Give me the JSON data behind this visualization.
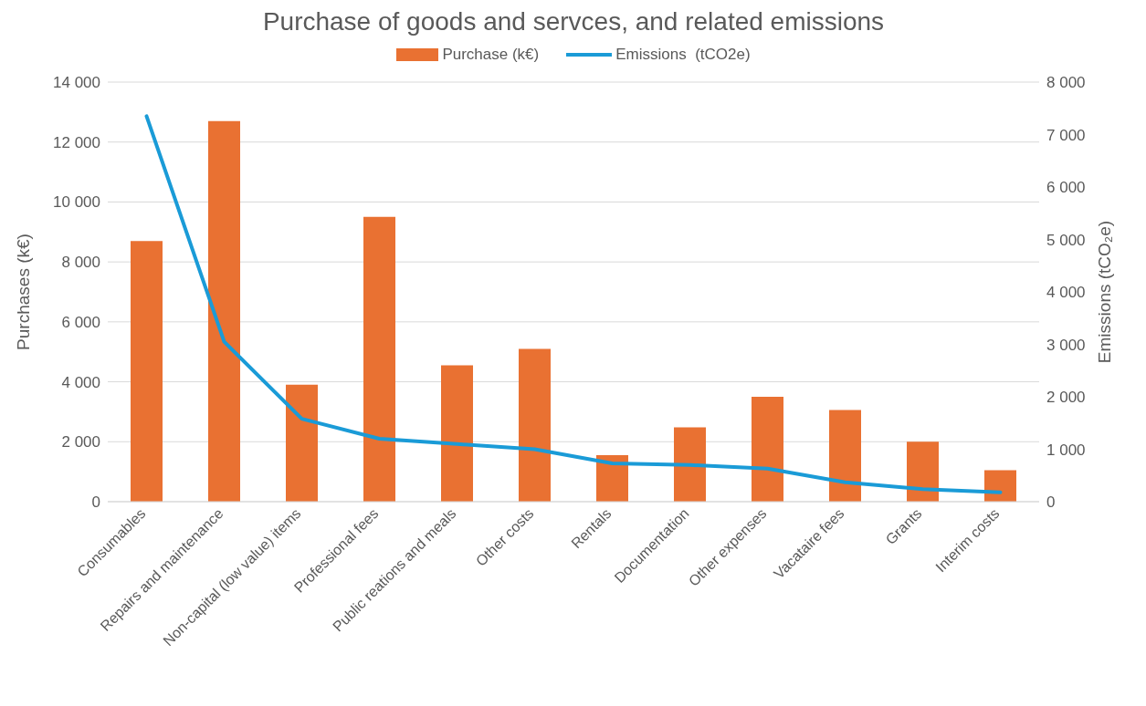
{
  "chart_data": {
    "type": "bar",
    "title": "Purchase of goods and servces, and related emissions",
    "ylabel": "Purchases (k€)",
    "y2label": "Emissions (tCO₂e)",
    "categories": [
      "Consumables",
      "Repairs and maintenance",
      "Non-capital (low value) items",
      "Professional fees",
      "Public reations and meals",
      "Other costs",
      "Rentals",
      "Documentation",
      "Other expenses",
      "Vacataire fees",
      "Grants",
      "Interim costs"
    ],
    "series": [
      {
        "name": "Purchase (k€)",
        "color": "#e97132",
        "values": [
          8700,
          12700,
          3900,
          9500,
          4550,
          5100,
          1550,
          2480,
          3500,
          3060,
          2000,
          1050
        ]
      },
      {
        "name": "Emissions  (tCO2e)",
        "type": "line",
        "axis": "y2",
        "color": "#1a9bd7",
        "values": [
          7350,
          3050,
          1580,
          1200,
          1100,
          1000,
          730,
          700,
          630,
          370,
          240,
          180
        ]
      }
    ],
    "ylim": [
      0,
      14000
    ],
    "yticks": [
      {
        "value": 0,
        "label": "0"
      },
      {
        "value": 2000,
        "label": "2 000"
      },
      {
        "value": 4000,
        "label": "4 000"
      },
      {
        "value": 6000,
        "label": "6 000"
      },
      {
        "value": 8000,
        "label": "8 000"
      },
      {
        "value": 10000,
        "label": "10 000"
      },
      {
        "value": 12000,
        "label": "12 000"
      },
      {
        "value": 14000,
        "label": "14 000"
      }
    ],
    "y2lim": [
      0,
      8000
    ],
    "y2ticks": [
      {
        "value": 0,
        "label": "0"
      },
      {
        "value": 1000,
        "label": "1 000"
      },
      {
        "value": 2000,
        "label": "2 000"
      },
      {
        "value": 3000,
        "label": "3 000"
      },
      {
        "value": 4000,
        "label": "4 000"
      },
      {
        "value": 5000,
        "label": "5 000"
      },
      {
        "value": 6000,
        "label": "6 000"
      },
      {
        "value": 7000,
        "label": "7 000"
      },
      {
        "value": 8000,
        "label": "8 000"
      }
    ],
    "grid": "y",
    "legend": "top",
    "marker": "none",
    "line_style": "solid"
  }
}
